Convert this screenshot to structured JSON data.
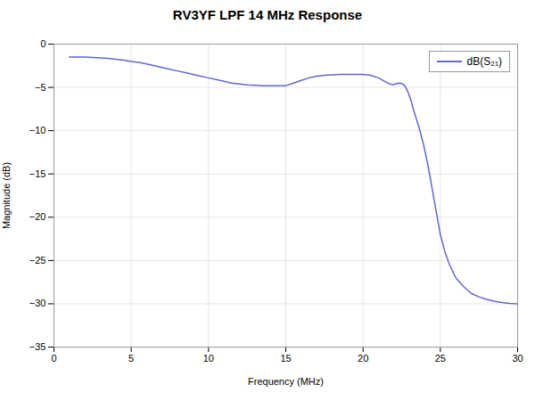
{
  "chart_data": {
    "type": "line",
    "title": "RV3YF LPF 14 MHz Response",
    "xlabel": "Frequency (MHz)",
    "ylabel": "Magnitude (dB)",
    "x": [
      1.0,
      1.5,
      2.0,
      2.5,
      3.0,
      3.5,
      4.0,
      4.5,
      5.0,
      5.5,
      6.0,
      6.5,
      7.0,
      7.5,
      8.0,
      8.5,
      9.0,
      9.5,
      10.0,
      10.5,
      11.0,
      11.5,
      12.0,
      12.5,
      13.0,
      13.5,
      14.0,
      14.5,
      15.0,
      15.5,
      16.0,
      16.5,
      17.0,
      17.5,
      18.0,
      18.5,
      19.0,
      19.5,
      20.0,
      20.5,
      21.0,
      21.3,
      21.6,
      21.9,
      22.1,
      22.3,
      22.5,
      22.7,
      22.9,
      23.1,
      23.3,
      23.6,
      23.9,
      24.2,
      24.5,
      24.8,
      25.0,
      25.3,
      25.6,
      26.0,
      26.5,
      27.0,
      27.5,
      28.0,
      28.5,
      29.0,
      29.5,
      30.0
    ],
    "series": [
      {
        "name": "dB(S₂₁)",
        "color": "#6666CC",
        "values": [
          -1.5,
          -1.5,
          -1.5,
          -1.55,
          -1.6,
          -1.65,
          -1.75,
          -1.85,
          -2.0,
          -2.1,
          -2.3,
          -2.5,
          -2.7,
          -2.9,
          -3.1,
          -3.3,
          -3.5,
          -3.7,
          -3.9,
          -4.1,
          -4.3,
          -4.5,
          -4.6,
          -4.7,
          -4.75,
          -4.8,
          -4.82,
          -4.82,
          -4.8,
          -4.5,
          -4.2,
          -3.9,
          -3.7,
          -3.6,
          -3.55,
          -3.5,
          -3.5,
          -3.5,
          -3.5,
          -3.6,
          -3.9,
          -4.2,
          -4.5,
          -4.7,
          -4.6,
          -4.5,
          -4.55,
          -4.8,
          -5.5,
          -6.5,
          -7.8,
          -9.5,
          -11.5,
          -14.0,
          -17.0,
          -20.0,
          -22.0,
          -24.0,
          -25.5,
          -27.0,
          -28.0,
          -28.8,
          -29.2,
          -29.5,
          -29.7,
          -29.85,
          -29.95,
          -30.0
        ]
      }
    ],
    "xlim": [
      0,
      30
    ],
    "ylim": [
      -35,
      0
    ],
    "xticks": [
      0,
      5,
      10,
      15,
      20,
      25,
      30
    ],
    "yticks": [
      0,
      -5,
      -10,
      -15,
      -20,
      -25,
      -30,
      -35
    ],
    "grid": true,
    "legend": "upper right"
  }
}
